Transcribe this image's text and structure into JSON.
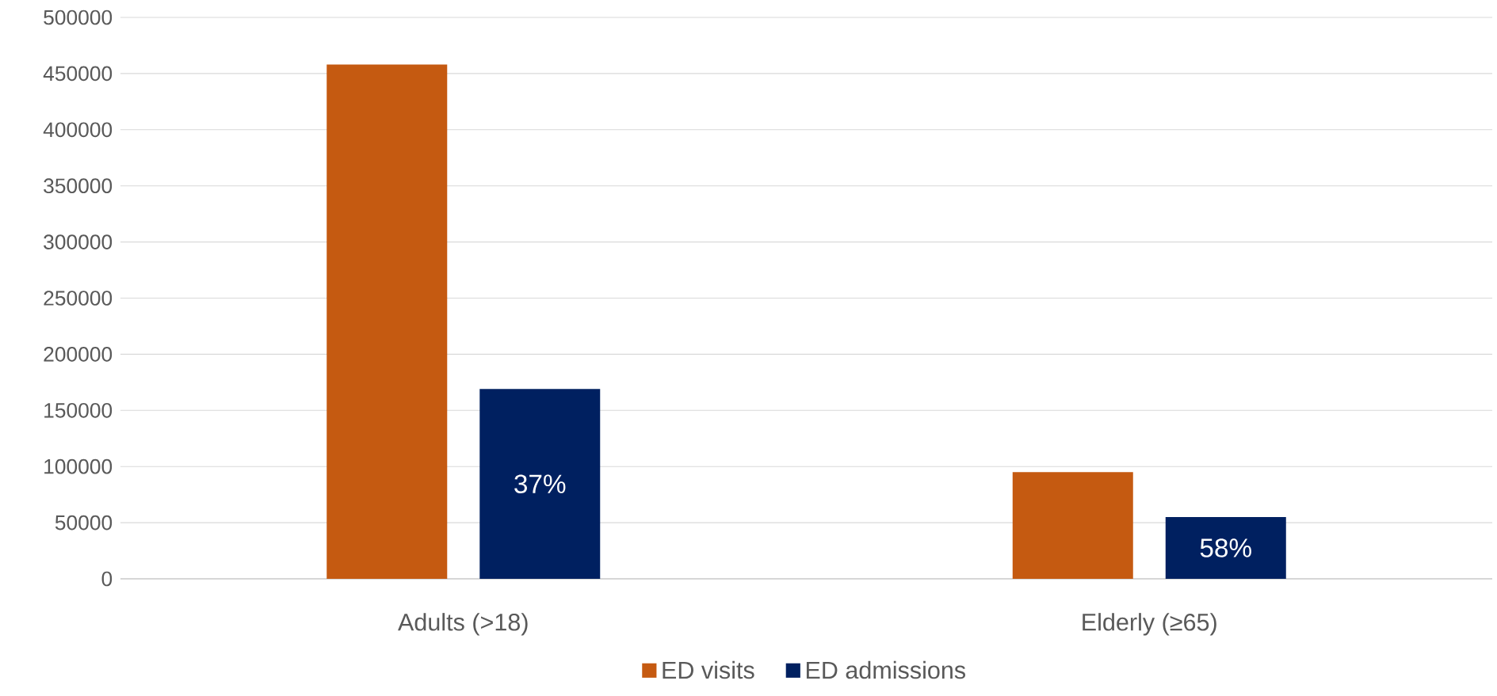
{
  "chart_data": {
    "type": "bar",
    "categories": [
      "Adults (>18)",
      "Elderly (≥65)"
    ],
    "series": [
      {
        "name": "ED visits",
        "color": "#c55a11",
        "values": [
          458000,
          95000
        ]
      },
      {
        "name": "ED admissions",
        "color": "#002060",
        "values": [
          169000,
          55000
        ]
      }
    ],
    "annotations": [
      "37%",
      "58%"
    ],
    "ylim": [
      0,
      500000
    ],
    "yticks": [
      0,
      50000,
      100000,
      150000,
      200000,
      250000,
      300000,
      350000,
      400000,
      450000,
      500000
    ],
    "grid": "y",
    "legend": "bottom"
  }
}
